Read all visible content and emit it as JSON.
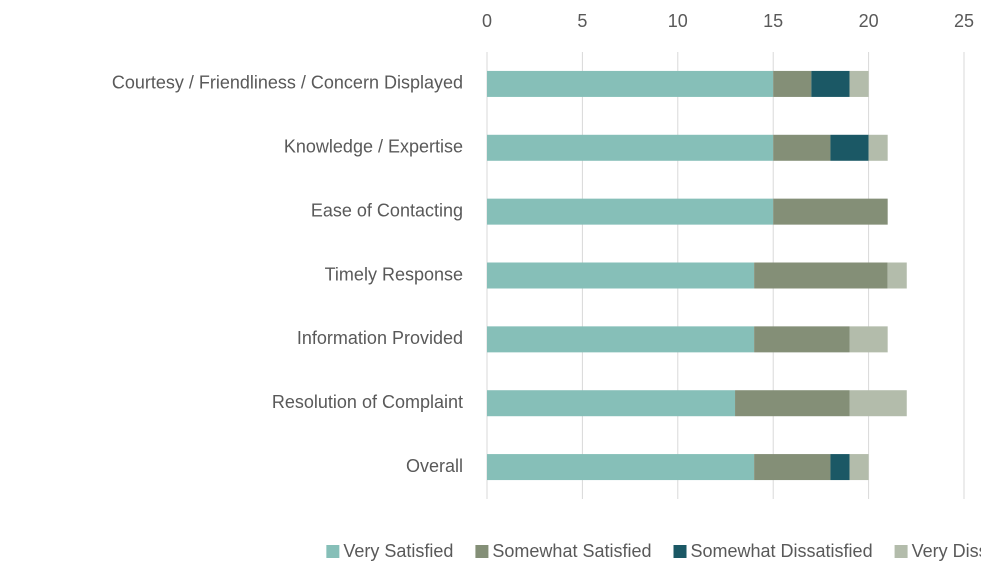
{
  "chart_data": {
    "type": "stacked_barh",
    "categories": [
      "Courtesy / Friendliness / Concern Displayed",
      "Knowledge / Expertise",
      "Ease of Contacting",
      "Timely Response",
      "Information Provided",
      "Resolution of Complaint",
      "Overall"
    ],
    "series": [
      {
        "name": "Very Satisfied",
        "color": "#86bfb8",
        "values": [
          15,
          15,
          15,
          14,
          14,
          13,
          14
        ]
      },
      {
        "name": "Somewhat Satisfied",
        "color": "#848f77",
        "values": [
          2,
          3,
          6,
          7,
          5,
          6,
          4
        ]
      },
      {
        "name": "Somewhat Dissatisfied",
        "color": "#1b5865",
        "values": [
          2,
          2,
          0,
          0,
          0,
          0,
          1
        ]
      },
      {
        "name": "Very Dissatisfied",
        "color": "#b3bcab",
        "values": [
          1,
          1,
          0,
          1,
          2,
          3,
          1
        ]
      }
    ],
    "xlim": [
      0,
      25
    ],
    "xticks": [
      0,
      5,
      10,
      15,
      20,
      25
    ],
    "grid": true,
    "legend": "bottom"
  }
}
